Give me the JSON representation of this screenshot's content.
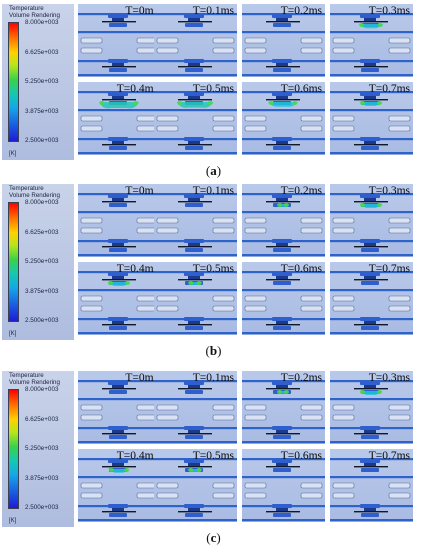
{
  "legend": {
    "title_line1": "Temperature",
    "title_line2": "Volume Rendering",
    "ticks": [
      "8.000e+003",
      "6.625e+003",
      "5.250e+003",
      "3.875e+003",
      "2.500e+003"
    ],
    "unit": "[K]"
  },
  "sections": [
    {
      "caption_open": "(",
      "caption_letter": "a",
      "caption_close": ")",
      "panels": [
        {
          "time": "T=0ms",
          "arc": 0
        },
        {
          "time": "T=0.1ms",
          "arc": 0
        },
        {
          "time": "T=0.2ms",
          "arc": 0
        },
        {
          "time": "T=0.3ms",
          "arc": 0.55
        },
        {
          "time": "T=0.4ms",
          "arc": 1.0
        },
        {
          "time": "T=0.5ms",
          "arc": 0.9
        },
        {
          "time": "T=0.6ms",
          "arc": 0.7
        },
        {
          "time": "T=0.7ms",
          "arc": 0.5
        }
      ]
    },
    {
      "caption_open": "(",
      "caption_letter": "b",
      "caption_close": ")",
      "panels": [
        {
          "time": "T=0ms",
          "arc": 0
        },
        {
          "time": "T=0.1ms",
          "arc": 0
        },
        {
          "time": "T=0.2ms",
          "arc": 0.2
        },
        {
          "time": "T=0.3ms",
          "arc": 0.5
        },
        {
          "time": "T=0.4ms",
          "arc": 0.5
        },
        {
          "time": "T=0.5ms",
          "arc": 0.25
        },
        {
          "time": "T=0.6ms",
          "arc": 0
        },
        {
          "time": "T=0.7ms",
          "arc": 0
        }
      ]
    },
    {
      "caption_open": "(",
      "caption_letter": "c",
      "caption_close": ")",
      "panels": [
        {
          "time": "T=0ms",
          "arc": 0
        },
        {
          "time": "T=0.1ms",
          "arc": 0
        },
        {
          "time": "T=0.2ms",
          "arc": 0.2
        },
        {
          "time": "T=0.3ms",
          "arc": 0.5
        },
        {
          "time": "T=0.4ms",
          "arc": 0.45
        },
        {
          "time": "T=0.5ms",
          "arc": 0.25
        },
        {
          "time": "T=0.6ms",
          "arc": 0
        },
        {
          "time": "T=0.7ms",
          "arc": 0
        }
      ]
    }
  ]
}
